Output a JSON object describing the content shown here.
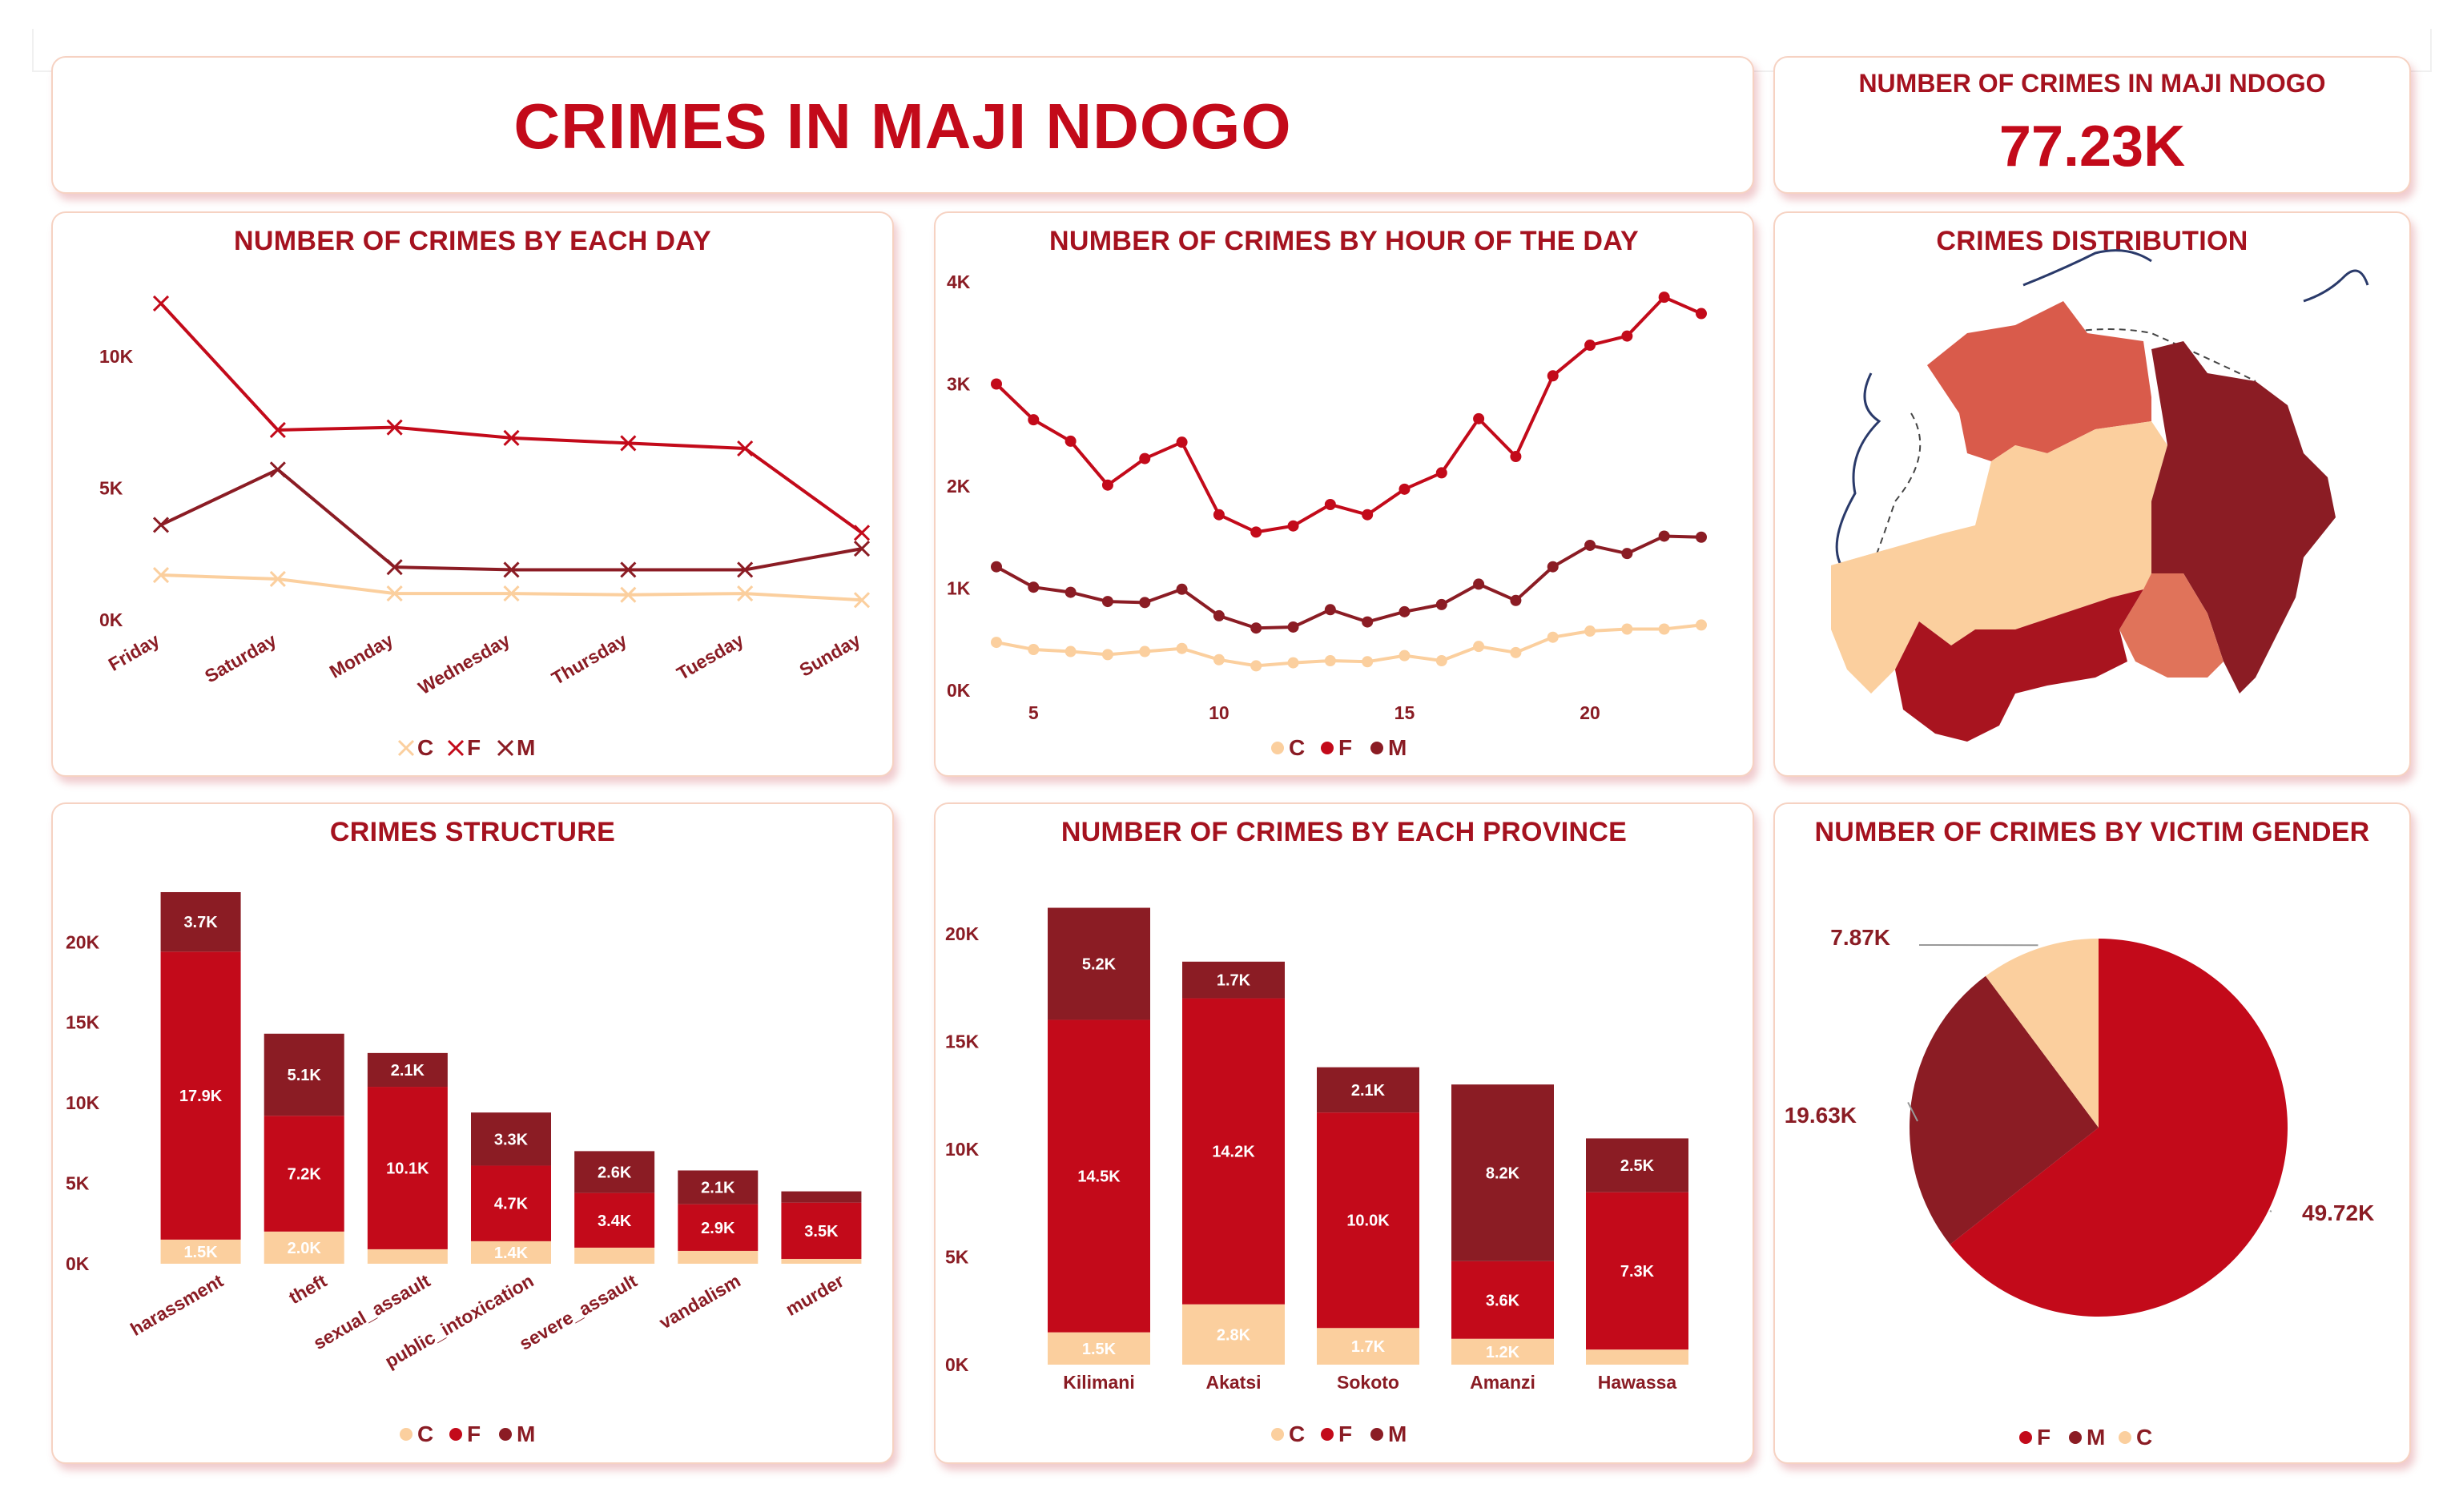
{
  "header": {
    "title": "CRIMES IN MAJI NDOGO"
  },
  "kpi": {
    "label": "NUMBER OF CRIMES IN MAJI NDOGO",
    "value": "77.23K"
  },
  "colors": {
    "C": "#fbcf9e",
    "F": "#c30a1a",
    "M": "#8b1c24",
    "title": "#a5121f"
  },
  "chart_data": [
    {
      "id": "by_day",
      "type": "line",
      "title": "NUMBER OF CRIMES BY EACH DAY",
      "categories": [
        "Friday",
        "Saturday",
        "Monday",
        "Wednesday",
        "Thursday",
        "Tuesday",
        "Sunday"
      ],
      "series": [
        {
          "name": "F",
          "values": [
            12000,
            7200,
            7300,
            6900,
            6700,
            6500,
            3300
          ]
        },
        {
          "name": "M",
          "values": [
            3600,
            5700,
            2000,
            1900,
            1900,
            1900,
            2700
          ]
        },
        {
          "name": "C",
          "values": [
            1700,
            1550,
            1000,
            1000,
            950,
            1000,
            750
          ]
        }
      ],
      "ylim": [
        0,
        13000
      ],
      "yticks": [
        0,
        5000,
        10000
      ],
      "ytick_labels": [
        "0K",
        "5K",
        "10K"
      ],
      "legend": [
        "C",
        "F",
        "M"
      ],
      "marker": "x"
    },
    {
      "id": "by_hour",
      "type": "line",
      "title": "NUMBER OF CRIMES BY HOUR OF THE DAY",
      "x": [
        4,
        5,
        6,
        7,
        8,
        9,
        10,
        11,
        12,
        13,
        14,
        15,
        16,
        17,
        18,
        19,
        20,
        21,
        22,
        23
      ],
      "series": [
        {
          "name": "F",
          "values": [
            3000,
            2650,
            2440,
            2010,
            2270,
            2430,
            1720,
            1550,
            1610,
            1820,
            1720,
            1970,
            2130,
            2660,
            2290,
            3080,
            3380,
            3470,
            3850,
            3690
          ]
        },
        {
          "name": "M",
          "values": [
            1210,
            1010,
            960,
            870,
            860,
            990,
            730,
            610,
            620,
            790,
            670,
            770,
            840,
            1040,
            880,
            1210,
            1420,
            1340,
            1510,
            1500
          ]
        },
        {
          "name": "C",
          "values": [
            470,
            400,
            380,
            350,
            380,
            410,
            300,
            240,
            270,
            290,
            280,
            340,
            290,
            430,
            370,
            520,
            580,
            600,
            600,
            640
          ]
        }
      ],
      "ylim": [
        0,
        4000
      ],
      "yticks": [
        0,
        1000,
        2000,
        3000,
        4000
      ],
      "ytick_labels": [
        "0K",
        "1K",
        "2K",
        "3K",
        "4K"
      ],
      "xticks": [
        5,
        10,
        15,
        20
      ],
      "xtick_labels": [
        "5",
        "10",
        "15",
        "20"
      ],
      "legend": [
        "C",
        "F",
        "M"
      ],
      "marker": "dot"
    },
    {
      "id": "structure",
      "type": "bar",
      "stacked": true,
      "title": "CRIMES STRUCTURE",
      "categories": [
        "harassment",
        "theft",
        "sexual_assault",
        "public_intoxication",
        "severe_assault",
        "vandalism",
        "murder"
      ],
      "series": [
        {
          "name": "C",
          "values": [
            1500,
            2000,
            900,
            1400,
            1000,
            800,
            300
          ],
          "labels": [
            "1.5K",
            "2.0K",
            "",
            "1.4K",
            "",
            "",
            ""
          ]
        },
        {
          "name": "F",
          "values": [
            17900,
            7200,
            10100,
            4700,
            3400,
            2900,
            3500
          ],
          "labels": [
            "17.9K",
            "7.2K",
            "10.1K",
            "4.7K",
            "3.4K",
            "2.9K",
            "3.5K"
          ]
        },
        {
          "name": "M",
          "values": [
            3700,
            5100,
            2100,
            3300,
            2600,
            2100,
            700
          ],
          "labels": [
            "3.7K",
            "5.1K",
            "2.1K",
            "3.3K",
            "2.6K",
            "2.1K",
            ""
          ]
        }
      ],
      "ylim": [
        0,
        23000
      ],
      "yticks": [
        0,
        5000,
        10000,
        15000,
        20000
      ],
      "ytick_labels": [
        "0K",
        "5K",
        "10K",
        "15K",
        "20K"
      ],
      "legend": [
        "C",
        "F",
        "M"
      ]
    },
    {
      "id": "province",
      "type": "bar",
      "stacked": true,
      "title": "NUMBER OF CRIMES BY EACH PROVINCE",
      "categories": [
        "Kilimani",
        "Akatsi",
        "Sokoto",
        "Amanzi",
        "Hawassa"
      ],
      "series": [
        {
          "name": "C",
          "values": [
            1500,
            2800,
            1700,
            1200,
            700
          ],
          "labels": [
            "1.5K",
            "2.8K",
            "1.7K",
            "1.2K",
            ""
          ]
        },
        {
          "name": "F",
          "values": [
            14500,
            14200,
            10000,
            3600,
            7300
          ],
          "labels": [
            "14.5K",
            "14.2K",
            "10.0K",
            "3.6K",
            "7.3K"
          ]
        },
        {
          "name": "M",
          "values": [
            5200,
            1700,
            2100,
            8200,
            2500
          ],
          "labels": [
            "5.2K",
            "1.7K",
            "2.1K",
            "8.2K",
            "2.5K"
          ]
        }
      ],
      "ylim": [
        0,
        22000
      ],
      "yticks": [
        0,
        5000,
        10000,
        15000,
        20000
      ],
      "ytick_labels": [
        "0K",
        "5K",
        "10K",
        "15K",
        "20K"
      ],
      "legend": [
        "C",
        "F",
        "M"
      ]
    },
    {
      "id": "gender",
      "type": "pie",
      "title": "NUMBER OF CRIMES BY VICTIM GENDER",
      "categories": [
        "F",
        "M",
        "C"
      ],
      "values": [
        49720,
        19630,
        7870
      ],
      "labels": [
        "49.72K",
        "19.63K",
        "7.87K"
      ],
      "legend": [
        "F",
        "M",
        "C"
      ]
    }
  ],
  "map": {
    "title": "CRIMES DISTRIBUTION"
  }
}
